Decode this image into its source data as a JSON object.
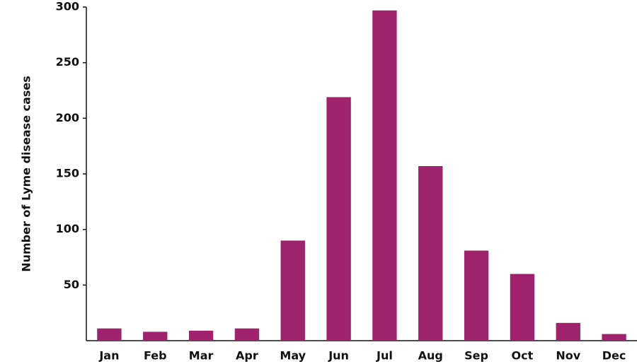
{
  "chart_data": {
    "type": "bar",
    "y_label": "Number of Lyme disease cases",
    "categories": [
      "Jan",
      "Feb",
      "Mar",
      "Apr",
      "May",
      "Jun",
      "Jul",
      "Aug",
      "Sep",
      "Oct",
      "Nov",
      "Dec"
    ],
    "values": [
      11,
      8,
      9,
      11,
      90,
      219,
      297,
      157,
      81,
      60,
      16,
      6
    ],
    "color": "#a0226d",
    "ylim": [
      0,
      300
    ],
    "yticks": [
      50,
      100,
      150,
      200,
      250,
      300
    ],
    "grid": false
  }
}
